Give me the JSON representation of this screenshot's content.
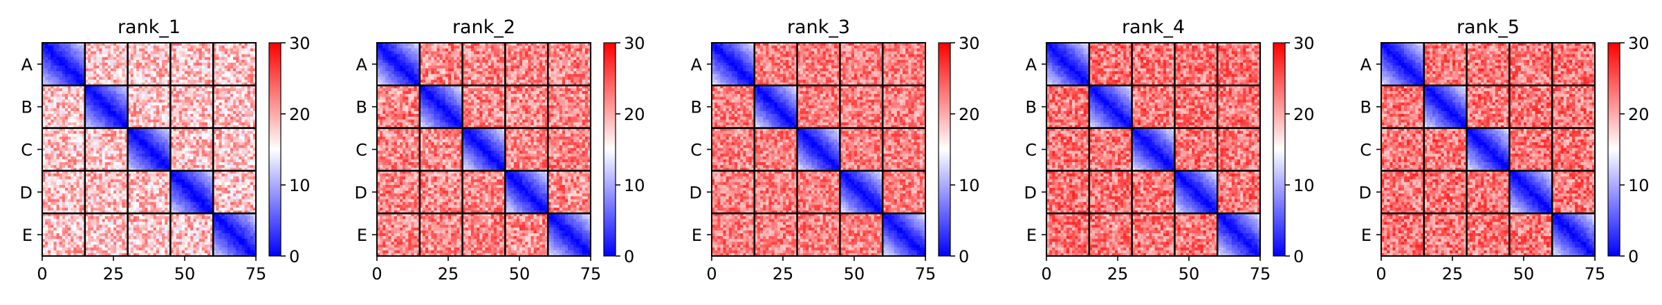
{
  "chart_data": [
    {
      "type": "heatmap",
      "title": "rank_1",
      "row_labels": [
        "A",
        "B",
        "C",
        "D",
        "E"
      ],
      "x_ticks": [
        0,
        25,
        50,
        75
      ],
      "xlim": [
        0,
        75
      ],
      "ylim": [
        75,
        0
      ],
      "block_size": 15,
      "colorbar_ticks": [
        0,
        10,
        20,
        30
      ],
      "color_range": [
        0,
        30
      ],
      "colormap": "bwr",
      "within_block_distance": [
        0,
        12
      ],
      "between_block_distance": [
        13,
        24
      ]
    },
    {
      "type": "heatmap",
      "title": "rank_2",
      "row_labels": [
        "A",
        "B",
        "C",
        "D",
        "E"
      ],
      "x_ticks": [
        0,
        25,
        50,
        75
      ],
      "xlim": [
        0,
        75
      ],
      "ylim": [
        75,
        0
      ],
      "block_size": 15,
      "colorbar_ticks": [
        0,
        10,
        20,
        30
      ],
      "color_range": [
        0,
        30
      ],
      "colormap": "bwr",
      "within_block_distance": [
        0,
        13
      ],
      "between_block_distance": [
        17,
        27
      ]
    },
    {
      "type": "heatmap",
      "title": "rank_3",
      "row_labels": [
        "A",
        "B",
        "C",
        "D",
        "E"
      ],
      "x_ticks": [
        0,
        25,
        50,
        75
      ],
      "xlim": [
        0,
        75
      ],
      "ylim": [
        75,
        0
      ],
      "block_size": 15,
      "colorbar_ticks": [
        0,
        10,
        20,
        30
      ],
      "color_range": [
        0,
        30
      ],
      "colormap": "bwr",
      "within_block_distance": [
        0,
        13
      ],
      "between_block_distance": [
        18,
        27
      ]
    },
    {
      "type": "heatmap",
      "title": "rank_4",
      "row_labels": [
        "A",
        "B",
        "C",
        "D",
        "E"
      ],
      "x_ticks": [
        0,
        25,
        50,
        75
      ],
      "xlim": [
        0,
        75
      ],
      "ylim": [
        75,
        0
      ],
      "block_size": 15,
      "colorbar_ticks": [
        0,
        10,
        20,
        30
      ],
      "color_range": [
        0,
        30
      ],
      "colormap": "bwr",
      "within_block_distance": [
        0,
        13
      ],
      "between_block_distance": [
        18,
        28
      ]
    },
    {
      "type": "heatmap",
      "title": "rank_5",
      "row_labels": [
        "A",
        "B",
        "C",
        "D",
        "E"
      ],
      "x_ticks": [
        0,
        25,
        50,
        75
      ],
      "xlim": [
        0,
        75
      ],
      "ylim": [
        75,
        0
      ],
      "block_size": 15,
      "colorbar_ticks": [
        0,
        10,
        20,
        30
      ],
      "color_range": [
        0,
        30
      ],
      "colormap": "bwr",
      "within_block_distance": [
        0,
        13
      ],
      "between_block_distance": [
        18,
        28
      ]
    }
  ]
}
